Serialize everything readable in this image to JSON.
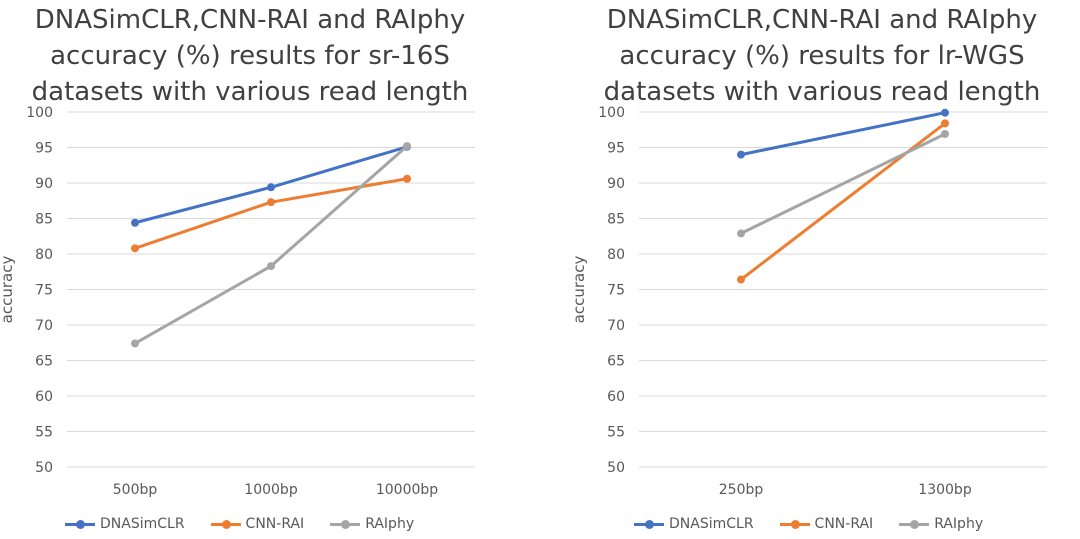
{
  "chart_data": [
    {
      "type": "line",
      "title": "DNASimCLR,CNN-RAI and RAIphy\naccuracy (%) results for sr-16S\ndatasets with various read length",
      "xlabel": "",
      "ylabel": "accuracy",
      "ylim": [
        50,
        100
      ],
      "yticks": [
        "50",
        "55",
        "60",
        "65",
        "70",
        "75",
        "80",
        "85",
        "90",
        "95",
        "100"
      ],
      "categories": [
        "500bp",
        "1000bp",
        "10000bp"
      ],
      "grid": true,
      "legend": "bottom",
      "series": [
        {
          "name": "DNASimCLR",
          "color": "#4472C4",
          "values": [
            84.4,
            89.4,
            95.1
          ]
        },
        {
          "name": "CNN-RAI",
          "color": "#ED7D31",
          "values": [
            80.8,
            87.3,
            90.6
          ]
        },
        {
          "name": "RAIphy",
          "color": "#A5A5A5",
          "values": [
            67.4,
            78.3,
            95.2
          ]
        }
      ]
    },
    {
      "type": "line",
      "title": "DNASimCLR,CNN-RAI and RAIphy\naccuracy (%) results for lr-WGS\ndatasets with various read length",
      "xlabel": "",
      "ylabel": "accuracy",
      "ylim": [
        50,
        100
      ],
      "yticks": [
        "50",
        "55",
        "60",
        "65",
        "70",
        "75",
        "80",
        "85",
        "90",
        "95",
        "100"
      ],
      "categories": [
        "250bp",
        "1300bp"
      ],
      "grid": true,
      "legend": "bottom",
      "series": [
        {
          "name": "DNASimCLR",
          "color": "#4472C4",
          "values": [
            94.0,
            99.9
          ]
        },
        {
          "name": "CNN-RAI",
          "color": "#ED7D31",
          "values": [
            76.4,
            98.4
          ]
        },
        {
          "name": "RAIphy",
          "color": "#A5A5A5",
          "values": [
            82.9,
            96.9
          ]
        }
      ]
    }
  ]
}
